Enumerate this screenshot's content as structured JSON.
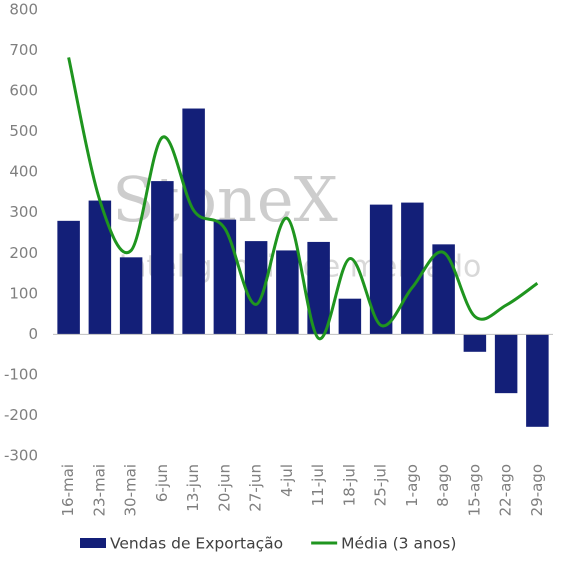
{
  "chart_data": {
    "type": "bar_line",
    "watermark": "StoneX",
    "watermark_subtitle": "Inteligência de mercado",
    "categories": [
      "16-mai",
      "23-mai",
      "30-mai",
      "6-jun",
      "13-jun",
      "20-jun",
      "27-jun",
      "4-jul",
      "11-jul",
      "18-jul",
      "25-jul",
      "1-ago",
      "8-ago",
      "15-ago",
      "22-ago",
      "29-ago"
    ],
    "series": [
      {
        "name": "Vendas de Exportação",
        "type": "bar",
        "color": "#131f78",
        "values": [
          280,
          330,
          190,
          378,
          557,
          283,
          230,
          207,
          228,
          88,
          320,
          325,
          222,
          -43,
          -145,
          -228
        ]
      },
      {
        "name": "Média (3 anos)",
        "type": "line",
        "color": "#1f951f",
        "values": [
          683,
          330,
          207,
          486,
          306,
          261,
          74,
          286,
          -10,
          187,
          22,
          116,
          202,
          44,
          72,
          126
        ]
      }
    ],
    "ylim": [
      -300,
      800
    ],
    "yticks": [
      -300,
      -200,
      -100,
      0,
      100,
      200,
      300,
      400,
      500,
      600,
      700,
      800
    ],
    "grid": false,
    "legend": "bottom"
  }
}
